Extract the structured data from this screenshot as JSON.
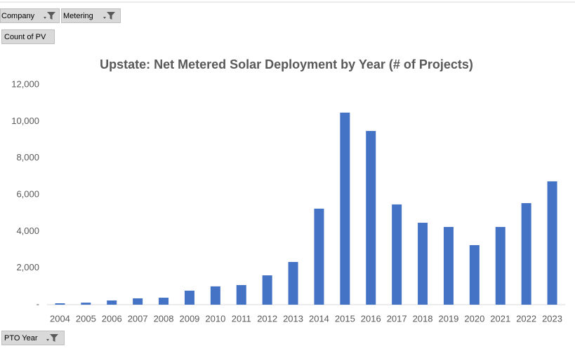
{
  "filters": {
    "company": "Company",
    "metering": "Metering",
    "value_field": "Count of PV",
    "axis_field": "PTO Year"
  },
  "chart_data": {
    "type": "bar",
    "title": "Upstate: Net Metered Solar Deployment by Year (# of Projects)",
    "categories": [
      "2004",
      "2005",
      "2006",
      "2007",
      "2008",
      "2009",
      "2010",
      "2011",
      "2012",
      "2013",
      "2014",
      "2015",
      "2016",
      "2017",
      "2018",
      "2019",
      "2020",
      "2021",
      "2022",
      "2023"
    ],
    "values": [
      75,
      110,
      230,
      345,
      380,
      765,
      1000,
      1070,
      1600,
      2330,
      5240,
      10480,
      9480,
      5470,
      4470,
      4240,
      3250,
      4240,
      5540,
      6730
    ],
    "color": "#4472c4",
    "ylim": [
      0,
      12000
    ],
    "yticks": [
      {
        "value": 0,
        "label": "-"
      },
      {
        "value": 2000,
        "label": "2,000"
      },
      {
        "value": 4000,
        "label": "4,000"
      },
      {
        "value": 6000,
        "label": "6,000"
      },
      {
        "value": 8000,
        "label": "8,000"
      },
      {
        "value": 10000,
        "label": "10,000"
      },
      {
        "value": 12000,
        "label": "12,000"
      }
    ],
    "grid": false
  }
}
